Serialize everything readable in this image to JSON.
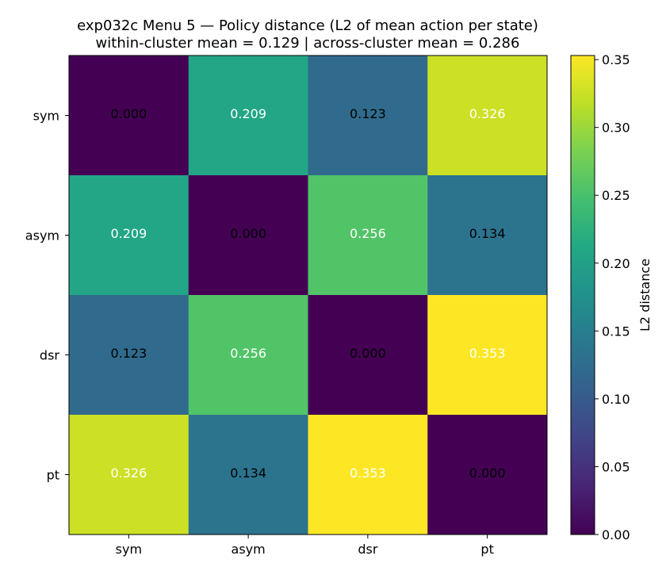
{
  "chart_data": {
    "type": "heatmap",
    "title": "exp032c Menu 5 — Policy distance (L2 of mean action per state)",
    "subtitle": "within-cluster mean = 0.129 | across-cluster mean = 0.286",
    "xlabel": "",
    "ylabel": "",
    "x_categories": [
      "sym",
      "asym",
      "dsr",
      "pt"
    ],
    "y_categories": [
      "sym",
      "asym",
      "dsr",
      "pt"
    ],
    "values": [
      [
        0.0,
        0.209,
        0.123,
        0.326
      ],
      [
        0.209,
        0.0,
        0.256,
        0.134
      ],
      [
        0.123,
        0.256,
        0.0,
        0.353
      ],
      [
        0.326,
        0.134,
        0.353,
        0.0
      ]
    ],
    "value_labels": [
      [
        "0.000",
        "0.209",
        "0.123",
        "0.326"
      ],
      [
        "0.209",
        "0.000",
        "0.256",
        "0.134"
      ],
      [
        "0.123",
        "0.256",
        "0.000",
        "0.353"
      ],
      [
        "0.326",
        "0.134",
        "0.353",
        "0.000"
      ]
    ],
    "colormap": "viridis",
    "vmin": 0.0,
    "vmax": 0.353,
    "colorbar": {
      "label": "L2 distance",
      "ticks": [
        0.0,
        0.05,
        0.1,
        0.15,
        0.2,
        0.25,
        0.3,
        0.35
      ],
      "tick_labels": [
        "0.00",
        "0.05",
        "0.10",
        "0.15",
        "0.20",
        "0.25",
        "0.30",
        "0.35"
      ]
    },
    "grid": false,
    "text_color_light": "#ffffff",
    "text_color_dark": "#000000"
  }
}
